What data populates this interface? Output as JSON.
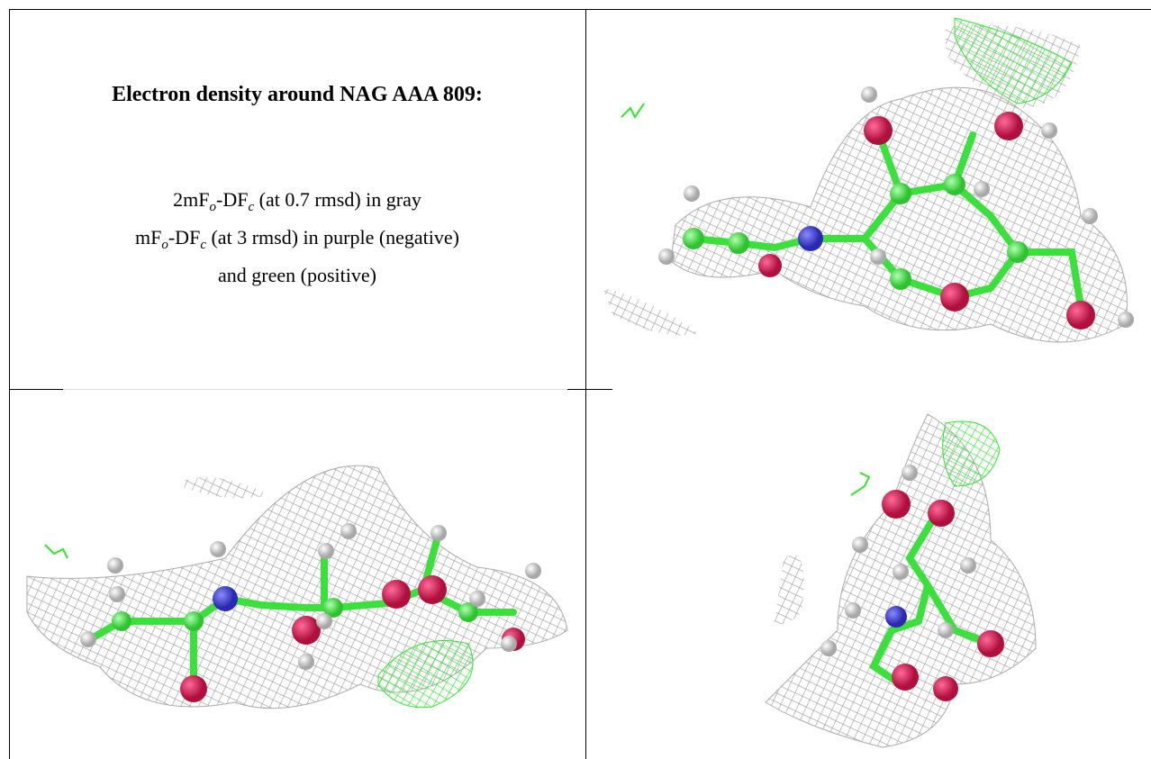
{
  "header": {
    "title": "Electron density around NAG AAA 809:"
  },
  "legend": {
    "lines": [
      [
        "2mF",
        "o",
        "-DF",
        "c",
        " (at 0.7 rmsd) in gray"
      ],
      [
        "mF",
        "o",
        "-DF",
        "c",
        " (at 3 rmsd) in purple (negative)"
      ],
      [
        "and green (positive)"
      ]
    ]
  }
}
